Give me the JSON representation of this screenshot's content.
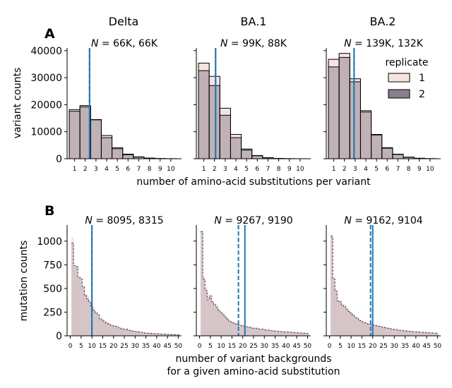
{
  "chart_data": {
    "type": "bar",
    "column_titles": [
      "Delta",
      "BA.1",
      "BA.2"
    ],
    "legend": {
      "title": "replicate",
      "entries": [
        "1",
        "2"
      ],
      "placement": "upper-right of BA.2 top panel"
    },
    "colors": {
      "replicate_1": "#f7e4e1",
      "replicate_2": "#8a7e8c",
      "overlap": "#c7b5ba",
      "median_line": "#1f77b4"
    },
    "top": {
      "panel_label": "A",
      "ylabel": "variant counts",
      "xlabel": "number of amino-acid substitutions per variant",
      "ylim": [
        0,
        41000
      ],
      "yticks": [
        0,
        10000,
        20000,
        30000,
        40000
      ],
      "ytick_labels": [
        "0",
        "10000",
        "20000",
        "30000",
        "40000"
      ],
      "xticks": [
        1,
        2,
        3,
        4,
        5,
        6,
        7,
        8,
        9,
        10
      ],
      "panels": [
        {
          "title": "N = 66K, 66K",
          "annotation": "$N = 66K, 66K$",
          "rep1": [
            18200,
            19700,
            14500,
            8600,
            4100,
            1700,
            700,
            250,
            80,
            20
          ],
          "rep2": [
            17600,
            19200,
            14400,
            7800,
            3700,
            1500,
            600,
            200,
            60,
            15
          ],
          "medians": [
            2.4,
            2.4
          ]
        },
        {
          "title": "N = 99K, 88K",
          "annotation": "$N = 99K, 88K$",
          "rep1": [
            35400,
            30500,
            18700,
            9000,
            3600,
            1200,
            400,
            120,
            30,
            5
          ],
          "rep2": [
            32600,
            27100,
            16100,
            7800,
            3200,
            1100,
            350,
            100,
            25,
            5
          ],
          "medians": [
            2.1,
            2.1
          ]
        },
        {
          "title": "N = 139K, 132K",
          "annotation": "$N = 139K, 132K$",
          "rep1": [
            36800,
            39000,
            29600,
            17800,
            9000,
            4100,
            1700,
            600,
            180,
            40
          ],
          "rep2": [
            34000,
            37500,
            28500,
            17300,
            8800,
            3900,
            1600,
            550,
            160,
            35
          ],
          "medians": [
            2.9,
            2.9
          ]
        }
      ]
    },
    "bottom": {
      "panel_label": "B",
      "ylabel": "mutation counts",
      "xlabel_lines": [
        "number of variant backgrounds",
        "for a given amino-acid substitution"
      ],
      "ylim": [
        0,
        1170
      ],
      "yticks": [
        0,
        250,
        500,
        750,
        1000
      ],
      "ytick_labels": [
        "0",
        "250",
        "500",
        "750",
        "1000"
      ],
      "xlim": [
        -1.5,
        51.5
      ],
      "xticks": [
        0,
        5,
        10,
        15,
        20,
        25,
        30,
        35,
        40,
        45,
        50
      ],
      "panels": [
        {
          "title": "N = 8095, 8315",
          "annotation": "$N = 8095, 8315$",
          "rep1": [
            0,
            1040,
            720,
            740,
            620,
            610,
            520,
            450,
            420,
            380,
            330,
            290,
            250,
            220,
            190,
            170,
            150,
            145,
            130,
            120,
            110,
            110,
            95,
            85,
            80,
            75,
            75,
            65,
            60,
            55,
            50,
            50,
            45,
            40,
            35,
            32,
            30,
            30,
            27,
            25,
            25,
            22,
            20,
            20,
            20,
            18,
            16,
            15,
            14,
            13,
            12
          ],
          "rep2": [
            0,
            980,
            740,
            730,
            620,
            600,
            520,
            430,
            390,
            350,
            300,
            270,
            240,
            220,
            180,
            165,
            145,
            130,
            125,
            110,
            105,
            100,
            90,
            80,
            75,
            70,
            70,
            60,
            55,
            50,
            45,
            45,
            40,
            35,
            32,
            30,
            28,
            27,
            25,
            22,
            22,
            20,
            18,
            18,
            18,
            16,
            14,
            13,
            12,
            11,
            10
          ],
          "medians": [
            10,
            10
          ]
        },
        {
          "title": "N = 9267, 9190",
          "annotation": "$N = 9267, 9190$",
          "rep1": [
            0,
            1110,
            620,
            510,
            440,
            430,
            370,
            340,
            320,
            290,
            250,
            240,
            210,
            185,
            160,
            150,
            140,
            130,
            120,
            115,
            110,
            110,
            100,
            95,
            90,
            85,
            85,
            80,
            75,
            75,
            70,
            65,
            65,
            60,
            55,
            55,
            50,
            50,
            45,
            45,
            45,
            40,
            40,
            40,
            35,
            35,
            35,
            30,
            30,
            30,
            25
          ],
          "rep2": [
            0,
            1100,
            600,
            480,
            380,
            420,
            360,
            330,
            300,
            270,
            240,
            220,
            200,
            180,
            155,
            145,
            135,
            125,
            115,
            110,
            105,
            100,
            95,
            90,
            85,
            80,
            80,
            75,
            70,
            70,
            65,
            60,
            60,
            55,
            55,
            50,
            50,
            45,
            45,
            40,
            40,
            40,
            38,
            35,
            35,
            32,
            32,
            30,
            28,
            28,
            25
          ],
          "medians": [
            18,
            21
          ]
        },
        {
          "title": "N = 9162, 9104",
          "annotation": "$N = 9162, 9104$",
          "rep1": [
            0,
            1070,
            620,
            480,
            380,
            370,
            340,
            330,
            290,
            270,
            250,
            230,
            200,
            190,
            170,
            160,
            145,
            140,
            130,
            125,
            120,
            115,
            110,
            105,
            100,
            95,
            90,
            85,
            80,
            75,
            70,
            70,
            65,
            60,
            60,
            55,
            55,
            50,
            50,
            45,
            45,
            45,
            40,
            40,
            40,
            35,
            35,
            35,
            32,
            30,
            30
          ],
          "rep2": [
            0,
            1050,
            600,
            470,
            370,
            360,
            320,
            310,
            280,
            260,
            240,
            220,
            195,
            180,
            160,
            150,
            140,
            135,
            125,
            120,
            115,
            110,
            105,
            100,
            95,
            90,
            85,
            80,
            75,
            70,
            68,
            65,
            60,
            58,
            55,
            52,
            50,
            48,
            45,
            42,
            42,
            40,
            38,
            38,
            36,
            34,
            32,
            32,
            30,
            28,
            28
          ],
          "medians": [
            19,
            20
          ]
        }
      ]
    }
  }
}
